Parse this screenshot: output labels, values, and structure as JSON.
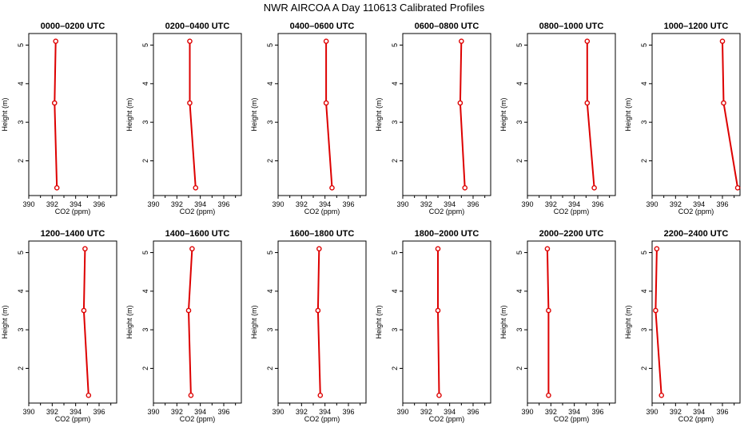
{
  "title": "NWR AIRCOA A  Day 110613  Calibrated Profiles",
  "colors": {
    "series": "#dd0000",
    "axis": "#000000",
    "background": "#ffffff"
  },
  "chart_data": [
    {
      "type": "line",
      "title": "0000–0200 UTC",
      "xlabel": "CO2 (ppm)",
      "ylabel": "Height (m)",
      "x": [
        392.4,
        392.2,
        392.3
      ],
      "y": [
        1.3,
        3.5,
        5.1
      ],
      "xlim": [
        390,
        397.5
      ],
      "ylim": [
        1.1,
        5.3
      ],
      "xticks": [
        "390",
        "392",
        "394",
        "396"
      ],
      "yticks": [
        "2",
        "3",
        "4",
        "5"
      ],
      "grid": false
    },
    {
      "type": "line",
      "title": "0200–0400 UTC",
      "xlabel": "CO2 (ppm)",
      "ylabel": "Height (m)",
      "x": [
        393.6,
        393.1,
        393.1
      ],
      "y": [
        1.3,
        3.5,
        5.1
      ],
      "xlim": [
        390,
        397.5
      ],
      "ylim": [
        1.1,
        5.3
      ],
      "xticks": [
        "390",
        "392",
        "394",
        "396"
      ],
      "yticks": [
        "2",
        "3",
        "4",
        "5"
      ],
      "grid": false
    },
    {
      "type": "line",
      "title": "0400–0600 UTC",
      "xlabel": "CO2 (ppm)",
      "ylabel": "Height (m)",
      "x": [
        394.6,
        394.1,
        394.1
      ],
      "y": [
        1.3,
        3.5,
        5.1
      ],
      "xlim": [
        390,
        397.5
      ],
      "ylim": [
        1.1,
        5.3
      ],
      "xticks": [
        "390",
        "392",
        "394",
        "396"
      ],
      "yticks": [
        "2",
        "3",
        "4",
        "5"
      ],
      "grid": false
    },
    {
      "type": "line",
      "title": "0600–0800 UTC",
      "xlabel": "CO2 (ppm)",
      "ylabel": "Height (m)",
      "x": [
        395.3,
        394.9,
        395.0
      ],
      "y": [
        1.3,
        3.5,
        5.1
      ],
      "xlim": [
        390,
        397.5
      ],
      "ylim": [
        1.1,
        5.3
      ],
      "xticks": [
        "390",
        "392",
        "394",
        "396"
      ],
      "yticks": [
        "2",
        "3",
        "4",
        "5"
      ],
      "grid": false
    },
    {
      "type": "line",
      "title": "0800–1000 UTC",
      "xlabel": "CO2 (ppm)",
      "ylabel": "Height (m)",
      "x": [
        395.7,
        395.1,
        395.1
      ],
      "y": [
        1.3,
        3.5,
        5.1
      ],
      "xlim": [
        390,
        397.5
      ],
      "ylim": [
        1.1,
        5.3
      ],
      "xticks": [
        "390",
        "392",
        "394",
        "396"
      ],
      "yticks": [
        "2",
        "3",
        "4",
        "5"
      ],
      "grid": false
    },
    {
      "type": "line",
      "title": "1000–1200 UTC",
      "xlabel": "CO2 (ppm)",
      "ylabel": "Height (m)",
      "x": [
        397.3,
        396.1,
        396.0
      ],
      "y": [
        1.3,
        3.5,
        5.1
      ],
      "xlim": [
        390,
        397.5
      ],
      "ylim": [
        1.1,
        5.3
      ],
      "xticks": [
        "390",
        "392",
        "394",
        "396"
      ],
      "yticks": [
        "2",
        "3",
        "4",
        "5"
      ],
      "grid": false
    },
    {
      "type": "line",
      "title": "1200–1400 UTC",
      "xlabel": "CO2 (ppm)",
      "ylabel": "Height (m)",
      "x": [
        395.1,
        394.7,
        394.8
      ],
      "y": [
        1.3,
        3.5,
        5.1
      ],
      "xlim": [
        390,
        397.5
      ],
      "ylim": [
        1.1,
        5.3
      ],
      "xticks": [
        "390",
        "392",
        "394",
        "396"
      ],
      "yticks": [
        "2",
        "3",
        "4",
        "5"
      ],
      "grid": false
    },
    {
      "type": "line",
      "title": "1400–1600 UTC",
      "xlabel": "CO2 (ppm)",
      "ylabel": "Height (m)",
      "x": [
        393.2,
        393.0,
        393.3
      ],
      "y": [
        1.3,
        3.5,
        5.1
      ],
      "xlim": [
        390,
        397.5
      ],
      "ylim": [
        1.1,
        5.3
      ],
      "xticks": [
        "390",
        "392",
        "394",
        "396"
      ],
      "yticks": [
        "2",
        "3",
        "4",
        "5"
      ],
      "grid": false
    },
    {
      "type": "line",
      "title": "1600–1800 UTC",
      "xlabel": "CO2 (ppm)",
      "ylabel": "Height (m)",
      "x": [
        393.6,
        393.4,
        393.5
      ],
      "y": [
        1.3,
        3.5,
        5.1
      ],
      "xlim": [
        390,
        397.5
      ],
      "ylim": [
        1.1,
        5.3
      ],
      "xticks": [
        "390",
        "392",
        "394",
        "396"
      ],
      "yticks": [
        "2",
        "3",
        "4",
        "5"
      ],
      "grid": false
    },
    {
      "type": "line",
      "title": "1800–2000 UTC",
      "xlabel": "CO2 (ppm)",
      "ylabel": "Height (m)",
      "x": [
        393.1,
        393.0,
        393.0
      ],
      "y": [
        1.3,
        3.5,
        5.1
      ],
      "xlim": [
        390,
        397.5
      ],
      "ylim": [
        1.1,
        5.3
      ],
      "xticks": [
        "390",
        "392",
        "394",
        "396"
      ],
      "yticks": [
        "2",
        "3",
        "4",
        "5"
      ],
      "grid": false
    },
    {
      "type": "line",
      "title": "2000–2200 UTC",
      "xlabel": "CO2 (ppm)",
      "ylabel": "Height (m)",
      "x": [
        391.8,
        391.8,
        391.7
      ],
      "y": [
        1.3,
        3.5,
        5.1
      ],
      "xlim": [
        390,
        397.5
      ],
      "ylim": [
        1.1,
        5.3
      ],
      "xticks": [
        "390",
        "392",
        "394",
        "396"
      ],
      "yticks": [
        "2",
        "3",
        "4",
        "5"
      ],
      "grid": false
    },
    {
      "type": "line",
      "title": "2200–2400 UTC",
      "xlabel": "CO2 (ppm)",
      "ylabel": "Height (m)",
      "x": [
        390.8,
        390.3,
        390.4
      ],
      "y": [
        1.3,
        3.5,
        5.1
      ],
      "xlim": [
        390,
        397.5
      ],
      "ylim": [
        1.1,
        5.3
      ],
      "xticks": [
        "390",
        "392",
        "394",
        "396"
      ],
      "yticks": [
        "2",
        "3",
        "4",
        "5"
      ],
      "grid": false
    }
  ]
}
